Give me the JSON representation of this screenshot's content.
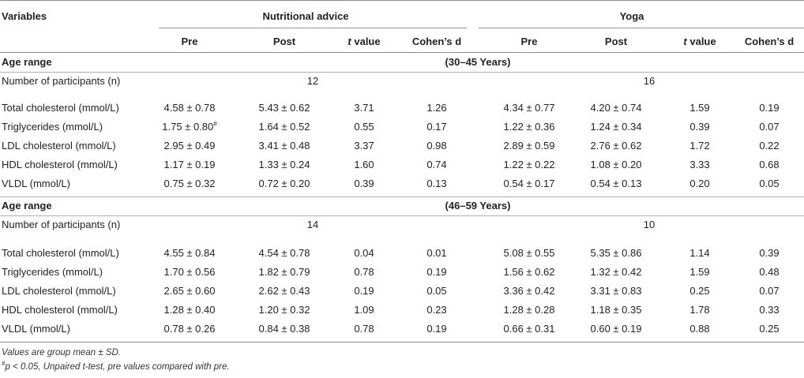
{
  "header": {
    "variables": "Variables",
    "group1": "Nutritional advice",
    "group2": "Yoga",
    "cols": [
      "Pre",
      "Post",
      "t value",
      "Cohen’s d",
      "Pre",
      "Post",
      "t value",
      "Cohen’s d"
    ],
    "t_italic": "t",
    "t_rest": " value"
  },
  "section1": {
    "label": "Age range",
    "range": "(30–45 Years)",
    "participants_label": "Number of participants (n)",
    "n1": "12",
    "n2": "16",
    "rows": [
      {
        "var": "Total cholesterol (mmol/L)",
        "v": [
          "4.58 ± 0.78",
          "5.43 ± 0.62",
          "3.71",
          "1.26",
          "4.34 ± 0.77",
          "4.20 ± 0.74",
          "1.59",
          "0.19"
        ]
      },
      {
        "var": "Triglycerides (mmol/L)",
        "v": [
          "1.75 ± 0.80",
          "1.64 ± 0.52",
          "0.55",
          "0.17",
          "1.22 ± 0.36",
          "1.24 ± 0.34",
          "0.39",
          "0.07"
        ],
        "sup": "#"
      },
      {
        "var": "LDL cholesterol (mmol/L)",
        "v": [
          "2.95 ± 0.49",
          "3.41 ± 0.48",
          "3.37",
          "0.98",
          "2.89 ± 0.59",
          "2.76 ± 0.62",
          "1.72",
          "0.22"
        ]
      },
      {
        "var": "HDL cholesterol (mmol/L)",
        "v": [
          "1.17 ± 0.19",
          "1.33 ± 0.24",
          "1.60",
          "0.74",
          "1.22 ± 0.22",
          "1.08 ± 0.20",
          "3.33",
          "0.68"
        ]
      },
      {
        "var": "VLDL (mmol/L)",
        "v": [
          "0.75 ± 0.32",
          "0.72 ± 0.20",
          "0.39",
          "0.13",
          "0.54 ± 0.17",
          "0.54 ± 0.13",
          "0.20",
          "0.05"
        ]
      }
    ]
  },
  "section2": {
    "label": "Age range",
    "range": "(46–59 Years)",
    "participants_label": "Number of participants (n)",
    "n1": "14",
    "n2": "10",
    "rows": [
      {
        "var": "Total cholesterol (mmol/L)",
        "v": [
          "4.55 ± 0.84",
          "4.54 ± 0.78",
          "0.04",
          "0.01",
          "5.08 ± 0.55",
          "5.35 ± 0.86",
          "1.14",
          "0.39"
        ]
      },
      {
        "var": "Triglycerides (mmol/L)",
        "v": [
          "1.70 ± 0.56",
          "1.82 ± 0.79",
          "0.78",
          "0.19",
          "1.56 ± 0.62",
          "1.32 ± 0.42",
          "1.59",
          "0.48"
        ]
      },
      {
        "var": "LDL cholesterol (mmol/L)",
        "v": [
          "2.65 ± 0.60",
          "2.62 ± 0.43",
          "0.19",
          "0.05",
          "3.36 ± 0.42",
          "3.31 ± 0.83",
          "0.25",
          "0.07"
        ]
      },
      {
        "var": "HDL cholesterol (mmol/L)",
        "v": [
          "1.28 ± 0.40",
          "1.20 ± 0.32",
          "1.09",
          "0.23",
          "1.28 ± 0.28",
          "1.18 ± 0.35",
          "1.78",
          "0.33"
        ]
      },
      {
        "var": "VLDL (mmol/L)",
        "v": [
          "0.78 ± 0.26",
          "0.84 ± 0.38",
          "0.78",
          "0.19",
          "0.66 ± 0.31",
          "0.60 ± 0.19",
          "0.88",
          "0.25"
        ]
      }
    ]
  },
  "footnotes": {
    "note1": "Values are group mean ± SD.",
    "note2_sup": "#",
    "note2": "p < 0.05, Unpaired t-test, pre values compared with pre."
  }
}
